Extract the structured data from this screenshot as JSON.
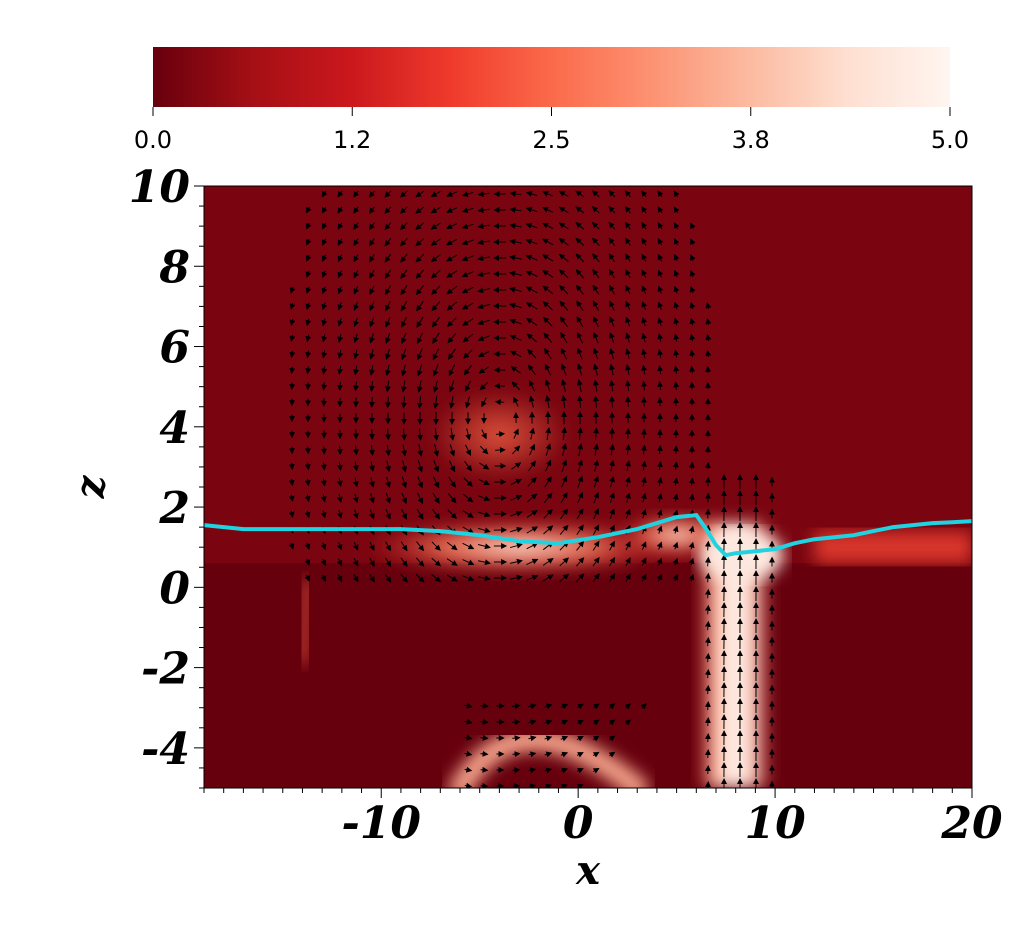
{
  "chart_data": {
    "type": "heatmap",
    "title": "",
    "xlabel": "x",
    "ylabel": "z",
    "xlim": [
      -19,
      20
    ],
    "ylim": [
      -5,
      10
    ],
    "x_ticks": [
      "-10",
      "0",
      "10",
      "20"
    ],
    "y_ticks": [
      "10",
      "8",
      "6",
      "4",
      "2",
      "0",
      "-2",
      "-4"
    ],
    "x_tick_values": [
      -10,
      0,
      10,
      20
    ],
    "y_tick_values": [
      10,
      8,
      6,
      4,
      2,
      0,
      -2,
      -4
    ],
    "colorbar": {
      "range": [
        0.0,
        5.0
      ],
      "ticks": [
        "0.0",
        "1.2",
        "2.5",
        "3.8",
        "5.0"
      ],
      "tick_values": [
        0.0,
        1.25,
        2.5,
        3.75,
        5.0
      ],
      "colors": [
        "#67000d",
        "#a50f15",
        "#cb181d",
        "#ef3b2c",
        "#fb6a4a",
        "#fc9272",
        "#fcbba1",
        "#fee0d2",
        "#fff5f0"
      ]
    },
    "background_color": "#67000d",
    "interface_line_color": "#1fd3e0",
    "interface_line": {
      "x": [
        -19,
        -17,
        -15,
        -13,
        -11,
        -9,
        -7,
        -5,
        -3,
        -1,
        1,
        3,
        5,
        6,
        6.5,
        7,
        7.5,
        8,
        9,
        10,
        11,
        12,
        13,
        14,
        15,
        16,
        17,
        18,
        19,
        20
      ],
      "z": [
        1.55,
        1.45,
        1.45,
        1.45,
        1.45,
        1.45,
        1.4,
        1.3,
        1.15,
        1.1,
        1.25,
        1.45,
        1.75,
        1.8,
        1.45,
        1.05,
        0.8,
        0.85,
        0.9,
        0.95,
        1.1,
        1.2,
        1.25,
        1.3,
        1.4,
        1.5,
        1.55,
        1.6,
        1.62,
        1.65
      ]
    },
    "vortex_center": {
      "x": -4,
      "z": 4.2
    },
    "high_value_regions": [
      {
        "name": "upwelling jet",
        "x_range": [
          6.5,
          10
        ],
        "z_range": [
          -5,
          1.5
        ],
        "value": 5.0
      },
      {
        "name": "lower arc",
        "x_range": [
          -6,
          3
        ],
        "z_range": [
          -5,
          -3.2
        ],
        "value": 3.8
      },
      {
        "name": "near-interface layer",
        "x_range": [
          -12,
          6
        ],
        "z_range": [
          0.3,
          1.8
        ],
        "value": 2.5
      }
    ]
  }
}
